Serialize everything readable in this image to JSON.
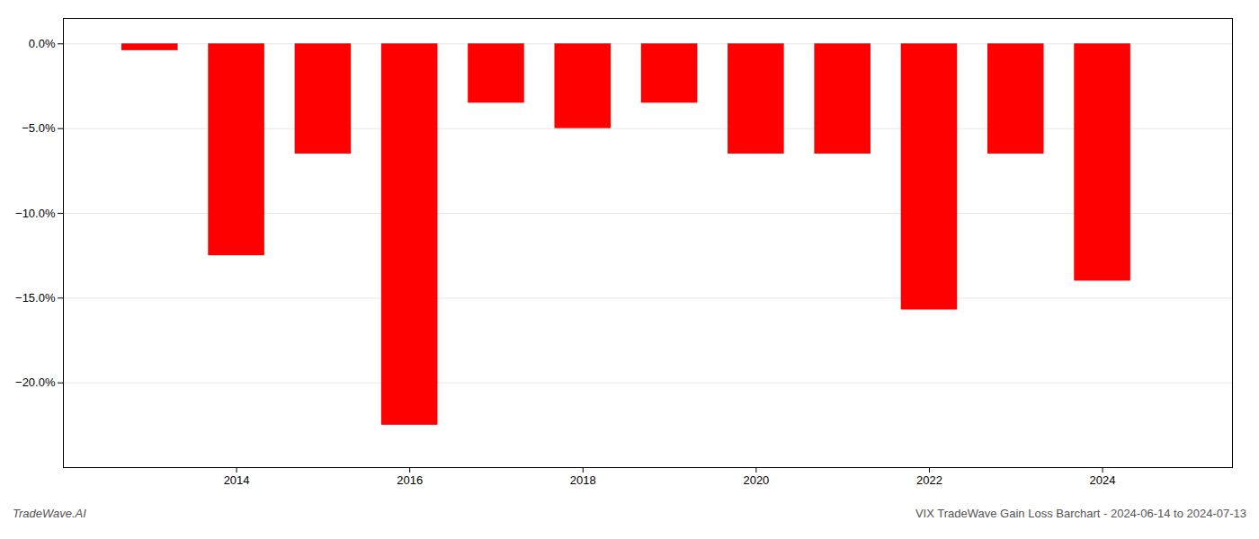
{
  "chart_data": {
    "type": "bar",
    "title": "VIX TradeWave Gain Loss Barchart - 2024-06-14 to 2024-07-13",
    "annotations": [
      "TradeWave.AI"
    ],
    "x": [
      2013,
      2014,
      2015,
      2016,
      2017,
      2018,
      2019,
      2020,
      2021,
      2022,
      2023,
      2024
    ],
    "values": [
      -0.4,
      -12.5,
      -6.5,
      -22.5,
      -3.5,
      -5.0,
      -3.5,
      -6.5,
      -6.5,
      -15.7,
      -6.5,
      -14.0
    ],
    "color": "#ff0000",
    "xlim": [
      2012.0,
      2025.5
    ],
    "xticks": [
      2014,
      2016,
      2018,
      2020,
      2022,
      2024
    ],
    "ylim": [
      -25,
      1.5
    ],
    "yticks": [
      {
        "value": 0,
        "label": "0.0%"
      },
      {
        "value": -5,
        "label": "−5.0%"
      },
      {
        "value": -10,
        "label": "−10.0%"
      },
      {
        "value": -15,
        "label": "−15.0%"
      },
      {
        "value": -20,
        "label": "−20.0%"
      }
    ],
    "grid": true
  }
}
